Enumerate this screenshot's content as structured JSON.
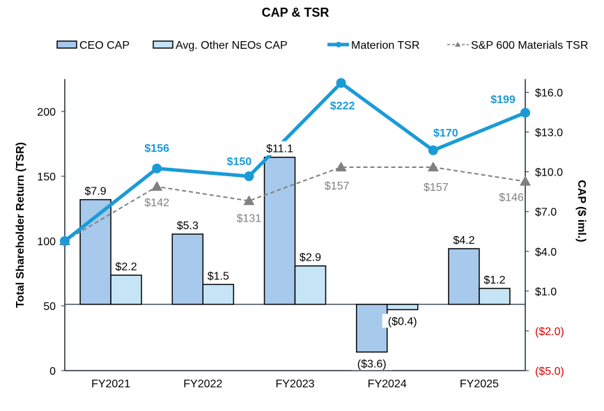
{
  "chart_data": {
    "type": "bar+line",
    "title": "CAP & TSR",
    "categories": [
      "FY2021",
      "FY2022",
      "FY2023",
      "FY2024",
      "FY2025"
    ],
    "ylabel_left": "Total Shareholder Return (TSR)",
    "ylabel_right": "CAP ($ iml.)",
    "ylim_left": [
      0,
      225
    ],
    "yticks_left": [
      "0",
      "50",
      "100",
      "150",
      "200"
    ],
    "ylim_right": [
      -5,
      17
    ],
    "yticks_right": [
      "($5.0)",
      "($2.0)",
      "$1.0",
      "$4.0",
      "$7.0",
      "$10.0",
      "$13.0",
      "$16.0"
    ],
    "legend_position": "top",
    "grid": false,
    "bar_series": [
      {
        "name": "CEO CAP",
        "values": [
          7.9,
          5.3,
          11.1,
          -3.6,
          4.2
        ],
        "labels": [
          "$7.9",
          "$5.3",
          "$11.1",
          "($3.6)",
          "$4.2"
        ],
        "color": "#a7c9ec"
      },
      {
        "name": "Avg. Other NEOs CAP",
        "values": [
          2.2,
          1.5,
          2.9,
          -0.4,
          1.2
        ],
        "labels": [
          "$2.2",
          "$1.5",
          "$2.9",
          "($0.4)",
          "$1.2"
        ],
        "color": "#c5e5f7"
      }
    ],
    "line_series": [
      {
        "name": "Materion TSR",
        "values": [
          100,
          156,
          150,
          222,
          170,
          199
        ],
        "labels": [
          "",
          "$156",
          "$150",
          "$222",
          "$170",
          "$199"
        ],
        "color": "#1a9bd7"
      },
      {
        "name": "S&P 600 Materials TSR",
        "values": [
          100,
          142,
          131,
          157,
          157,
          146
        ],
        "labels": [
          "",
          "$142",
          "$131",
          "$157",
          "$157",
          "$146"
        ],
        "color": "#808080"
      }
    ],
    "negative_tick_color": "#e00000"
  }
}
